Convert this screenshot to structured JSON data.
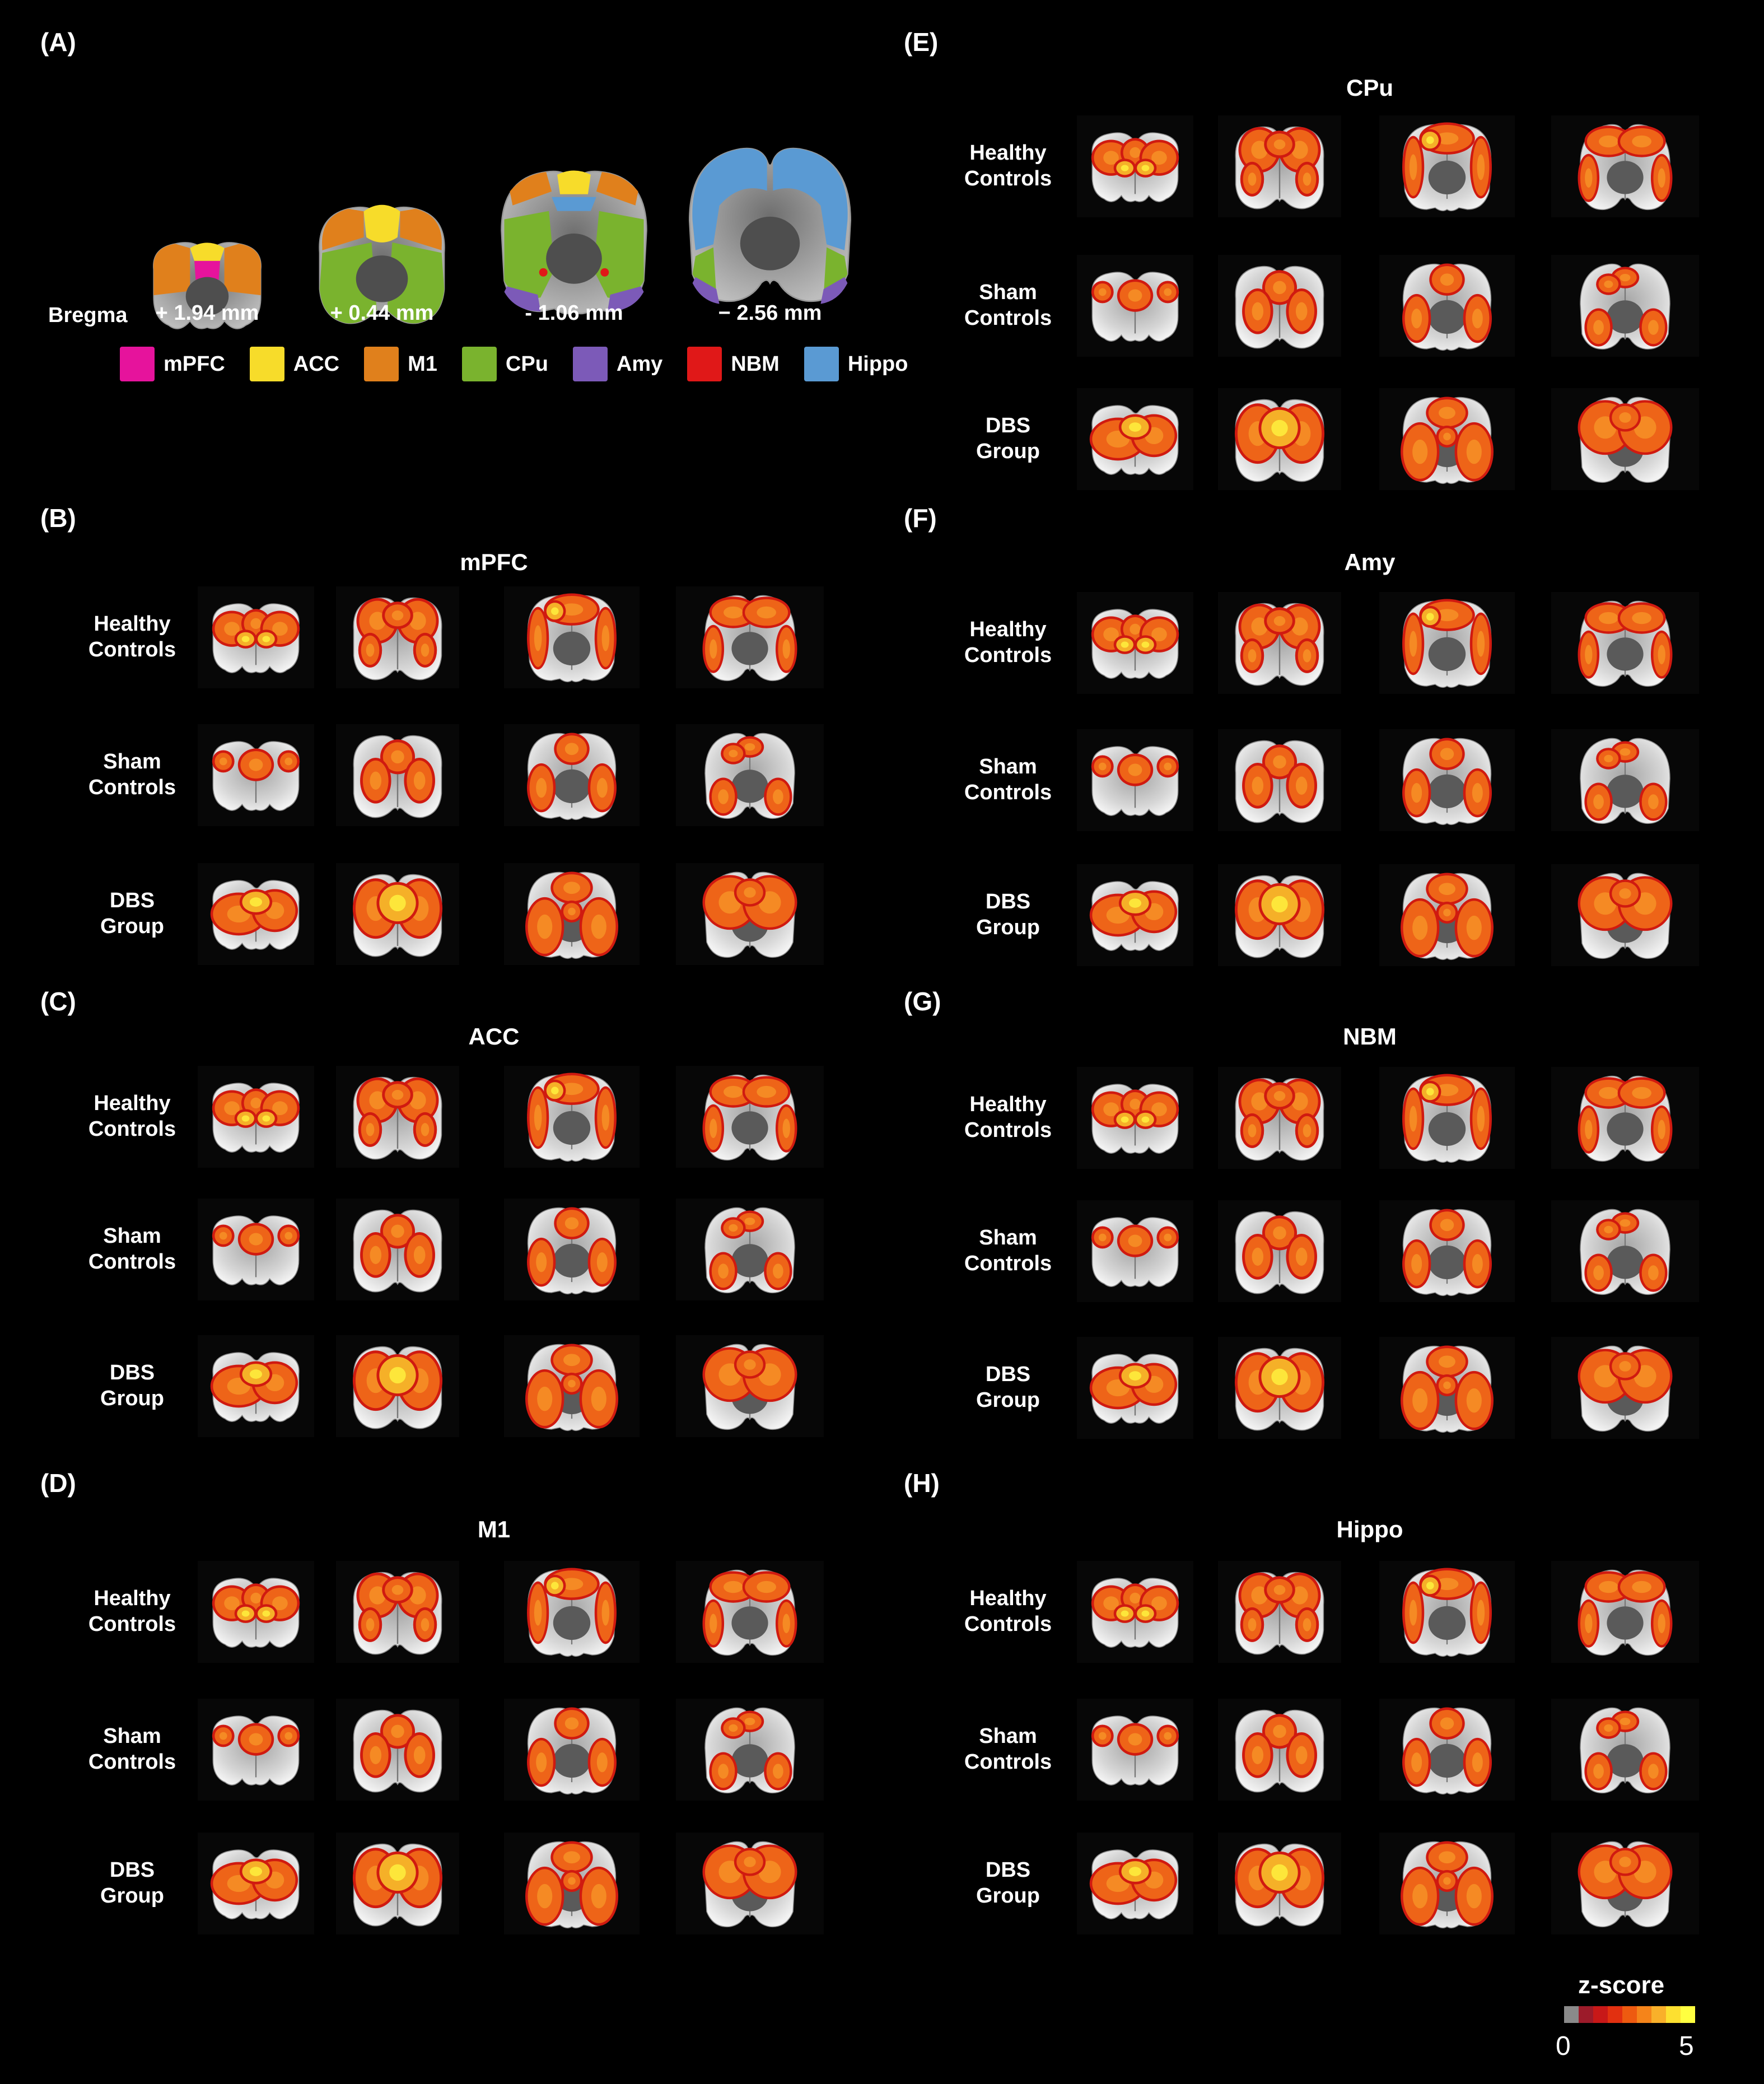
{
  "panel_a": {
    "letter": "(A)",
    "bregma_label": "Bregma",
    "slices": [
      "+ 1.94 mm",
      "+ 0.44 mm",
      "- 1.06 mm",
      "− 2.56 mm"
    ],
    "legend": [
      {
        "label": "mPFC",
        "color": "#e6139c"
      },
      {
        "label": "ACC",
        "color": "#f7dc2a"
      },
      {
        "label": "M1",
        "color": "#e0801c"
      },
      {
        "label": "CPu",
        "color": "#7ab32e"
      },
      {
        "label": "Amy",
        "color": "#7c5ab8"
      },
      {
        "label": "NBM",
        "color": "#e01818"
      },
      {
        "label": "Hippo",
        "color": "#5a9ad3"
      }
    ]
  },
  "row_labels": [
    "Healthy\nControls",
    "Sham\nControls",
    "DBS\nGroup"
  ],
  "panels": [
    {
      "letter": "(B)",
      "title": "mPFC"
    },
    {
      "letter": "(C)",
      "title": "ACC"
    },
    {
      "letter": "(D)",
      "title": "M1"
    },
    {
      "letter": "(E)",
      "title": "CPu"
    },
    {
      "letter": "(F)",
      "title": "Amy"
    },
    {
      "letter": "(G)",
      "title": "NBM"
    },
    {
      "letter": "(H)",
      "title": "Hippo"
    }
  ],
  "colorbar": {
    "title": "z-score",
    "min": "0",
    "max": "5",
    "colors": [
      "#8a8a8a",
      "#9c1b2a",
      "#c81818",
      "#e23010",
      "#ee5a10",
      "#f5841a",
      "#f9b02a",
      "#fde030",
      "#ffff40"
    ]
  }
}
